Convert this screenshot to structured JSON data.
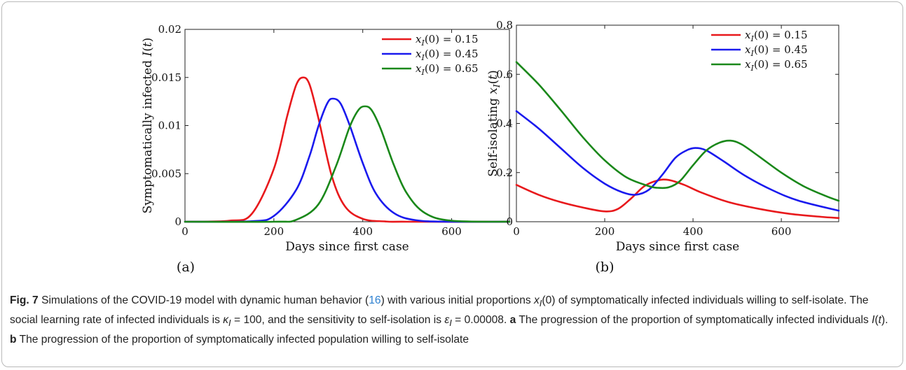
{
  "chart_data": [
    {
      "type": "line",
      "panel_label": "(a)",
      "xlabel": "Days since first case",
      "ylabel": "Symptomatically infected I(t)",
      "xlim": [
        0,
        730
      ],
      "ylim": [
        0,
        0.02
      ],
      "xticks": [
        "0",
        "200",
        "400",
        "600"
      ],
      "yticks": [
        "0",
        "0.005",
        "0.01",
        "0.015",
        "0.02"
      ],
      "legend_position": "top-right",
      "grid": false,
      "series": [
        {
          "name": "x_I(0) = 0.15",
          "color": "#e8191c",
          "x": [
            0,
            100,
            150,
            200,
            230,
            250,
            265,
            280,
            300,
            330,
            360,
            400,
            450,
            500,
            730
          ],
          "y": [
            0,
            0.0001,
            0.0008,
            0.0055,
            0.011,
            0.0142,
            0.015,
            0.0143,
            0.0108,
            0.0048,
            0.0016,
            0.0003,
            3e-05,
            0,
            0
          ]
        },
        {
          "name": "x_I(0) = 0.45",
          "color": "#1a1aee",
          "x": [
            0,
            150,
            200,
            250,
            280,
            300,
            320,
            333,
            350,
            370,
            400,
            430,
            470,
            520,
            600,
            730
          ],
          "y": [
            0,
            5e-05,
            0.0006,
            0.0033,
            0.0068,
            0.0099,
            0.0123,
            0.0128,
            0.0123,
            0.0101,
            0.0061,
            0.0029,
            0.0009,
            0.00015,
            0,
            0
          ]
        },
        {
          "name": "x_I(0) = 0.65",
          "color": "#1a881a",
          "x": [
            0,
            200,
            250,
            300,
            340,
            370,
            390,
            405,
            420,
            440,
            470,
            500,
            540,
            600,
            730
          ],
          "y": [
            0,
            0,
            0.0002,
            0.0018,
            0.0058,
            0.0098,
            0.0116,
            0.012,
            0.0116,
            0.0097,
            0.0059,
            0.0029,
            0.0009,
            0.0001,
            0
          ]
        }
      ]
    },
    {
      "type": "line",
      "panel_label": "(b)",
      "xlabel": "Days since first case",
      "ylabel": "Self-isolating x_I(t)",
      "xlim": [
        0,
        730
      ],
      "ylim": [
        0,
        0.8
      ],
      "xticks": [
        "0",
        "200",
        "400",
        "600"
      ],
      "yticks": [
        "0",
        "0.2",
        "0.4",
        "0.6",
        "0.8"
      ],
      "legend_position": "top-right",
      "grid": false,
      "series": [
        {
          "name": "x_I(0) = 0.15",
          "color": "#e8191c",
          "x": [
            0,
            50,
            100,
            150,
            200,
            230,
            260,
            290,
            320,
            345,
            380,
            420,
            480,
            550,
            620,
            690,
            730
          ],
          "y": [
            0.15,
            0.11,
            0.08,
            0.058,
            0.042,
            0.052,
            0.095,
            0.145,
            0.168,
            0.17,
            0.15,
            0.118,
            0.08,
            0.052,
            0.032,
            0.02,
            0.015
          ]
        },
        {
          "name": "x_I(0) = 0.45",
          "color": "#1a1aee",
          "x": [
            0,
            50,
            100,
            150,
            200,
            240,
            270,
            300,
            330,
            360,
            385,
            405,
            430,
            470,
            520,
            580,
            640,
            730
          ],
          "y": [
            0.45,
            0.38,
            0.3,
            0.22,
            0.155,
            0.12,
            0.11,
            0.13,
            0.19,
            0.26,
            0.29,
            0.3,
            0.29,
            0.245,
            0.185,
            0.128,
            0.085,
            0.045
          ]
        },
        {
          "name": "x_I(0) = 0.65",
          "color": "#1a881a",
          "x": [
            0,
            50,
            100,
            150,
            200,
            250,
            300,
            320,
            345,
            370,
            400,
            430,
            460,
            485,
            510,
            550,
            600,
            650,
            700,
            730
          ],
          "y": [
            0.65,
            0.56,
            0.455,
            0.345,
            0.25,
            0.18,
            0.145,
            0.138,
            0.14,
            0.165,
            0.23,
            0.29,
            0.322,
            0.33,
            0.315,
            0.265,
            0.2,
            0.145,
            0.105,
            0.085
          ]
        }
      ]
    }
  ],
  "caption": {
    "fig_label": "Fig. 7",
    "t1": " Simulations of the COVID-19 model with dynamic human behavior (",
    "ref": "16",
    "t2": ") with various initial proportions ",
    "var": "x",
    "var_sub": "I",
    "t3": "(0) of symptomatically infected individuals willing to self-isolate. The social learning rate of infected individuals is ",
    "kappa": "κ",
    "kappa_sub": "I",
    "t4": " = 100, and the sensitivity to self-isolation is ",
    "eps": "ε",
    "eps_sub": "I",
    "t5": " = 0.00008. ",
    "a": "a",
    "t6": " The progression of the proportion of symptomatically infected individuals ",
    "It": "I",
    "t7": "(",
    "t8": "t",
    "t9": "). ",
    "b": "b",
    "t10": " The progression of the proportion of symptomatically infected population willing to self-isolate"
  }
}
